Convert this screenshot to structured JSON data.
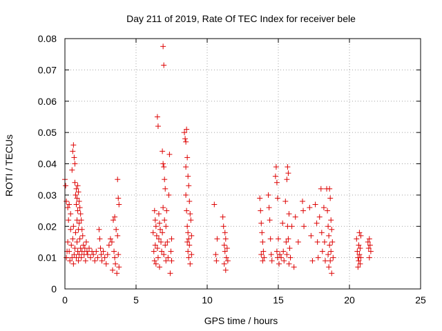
{
  "chart_data": {
    "type": "scatter",
    "title": "Day 211 of 2019, Rate Of TEC Index for receiver bele",
    "xlabel": "GPS time / hours",
    "ylabel": "ROTI / TECUs",
    "xlim": [
      0,
      25
    ],
    "ylim": [
      0,
      0.08
    ],
    "xticks": [
      0,
      5,
      10,
      15,
      20,
      25
    ],
    "xtick_labels": [
      "0",
      "5",
      "10",
      "15",
      "20",
      "25"
    ],
    "yticks": [
      0,
      0.01,
      0.02,
      0.03,
      0.04,
      0.05,
      0.06,
      0.07,
      0.08
    ],
    "ytick_labels": [
      "0",
      "0.01",
      "0.02",
      "0.03",
      "0.04",
      "0.05",
      "0.06",
      "0.07",
      "0.08"
    ],
    "grid": true,
    "marker": "plus",
    "color": "#dd0000",
    "points": [
      [
        0.0,
        0.035
      ],
      [
        0.05,
        0.033
      ],
      [
        0.1,
        0.028
      ],
      [
        0.1,
        0.01
      ],
      [
        0.15,
        0.012
      ],
      [
        0.2,
        0.026
      ],
      [
        0.2,
        0.015
      ],
      [
        0.25,
        0.022
      ],
      [
        0.3,
        0.027
      ],
      [
        0.3,
        0.012
      ],
      [
        0.35,
        0.009
      ],
      [
        0.4,
        0.019
      ],
      [
        0.4,
        0.024
      ],
      [
        0.45,
        0.014
      ],
      [
        0.5,
        0.038
      ],
      [
        0.5,
        0.01
      ],
      [
        0.55,
        0.044
      ],
      [
        0.55,
        0.016
      ],
      [
        0.6,
        0.046
      ],
      [
        0.6,
        0.02
      ],
      [
        0.6,
        0.008
      ],
      [
        0.65,
        0.042
      ],
      [
        0.65,
        0.011
      ],
      [
        0.7,
        0.04
      ],
      [
        0.7,
        0.034
      ],
      [
        0.7,
        0.013
      ],
      [
        0.75,
        0.03
      ],
      [
        0.75,
        0.018
      ],
      [
        0.8,
        0.032
      ],
      [
        0.8,
        0.027
      ],
      [
        0.8,
        0.01
      ],
      [
        0.85,
        0.029
      ],
      [
        0.85,
        0.022
      ],
      [
        0.85,
        0.015
      ],
      [
        0.9,
        0.033
      ],
      [
        0.9,
        0.025
      ],
      [
        0.9,
        0.012
      ],
      [
        0.95,
        0.031
      ],
      [
        0.95,
        0.019
      ],
      [
        0.95,
        0.009
      ],
      [
        1.0,
        0.028
      ],
      [
        1.0,
        0.021
      ],
      [
        1.0,
        0.011
      ],
      [
        1.05,
        0.026
      ],
      [
        1.05,
        0.016
      ],
      [
        1.1,
        0.024
      ],
      [
        1.1,
        0.013
      ],
      [
        1.15,
        0.022
      ],
      [
        1.15,
        0.01
      ],
      [
        1.2,
        0.019
      ],
      [
        1.2,
        0.012
      ],
      [
        1.25,
        0.017
      ],
      [
        1.3,
        0.014
      ],
      [
        1.35,
        0.011
      ],
      [
        1.4,
        0.013
      ],
      [
        1.45,
        0.009
      ],
      [
        1.5,
        0.015
      ],
      [
        1.55,
        0.012
      ],
      [
        1.6,
        0.011
      ],
      [
        1.7,
        0.013
      ],
      [
        1.8,
        0.01
      ],
      [
        1.9,
        0.012
      ],
      [
        2.0,
        0.011
      ],
      [
        2.1,
        0.009
      ],
      [
        2.2,
        0.012
      ],
      [
        2.3,
        0.01
      ],
      [
        2.4,
        0.019
      ],
      [
        2.45,
        0.016
      ],
      [
        2.5,
        0.013
      ],
      [
        2.55,
        0.011
      ],
      [
        2.6,
        0.009
      ],
      [
        2.7,
        0.012
      ],
      [
        2.8,
        0.01
      ],
      [
        2.9,
        0.008
      ],
      [
        3.0,
        0.011
      ],
      [
        3.1,
        0.014
      ],
      [
        3.2,
        0.016
      ],
      [
        3.3,
        0.015
      ],
      [
        3.35,
        0.006
      ],
      [
        3.4,
        0.022
      ],
      [
        3.45,
        0.012
      ],
      [
        3.5,
        0.023
      ],
      [
        3.5,
        0.01
      ],
      [
        3.55,
        0.008
      ],
      [
        3.6,
        0.019
      ],
      [
        3.65,
        0.005
      ],
      [
        3.7,
        0.035
      ],
      [
        3.7,
        0.017
      ],
      [
        3.75,
        0.029
      ],
      [
        3.75,
        0.011
      ],
      [
        3.8,
        0.027
      ],
      [
        3.8,
        0.007
      ],
      [
        6.2,
        0.018
      ],
      [
        6.25,
        0.012
      ],
      [
        6.3,
        0.025
      ],
      [
        6.3,
        0.009
      ],
      [
        6.35,
        0.022
      ],
      [
        6.35,
        0.014
      ],
      [
        6.4,
        0.02
      ],
      [
        6.4,
        0.008
      ],
      [
        6.45,
        0.017
      ],
      [
        6.5,
        0.055
      ],
      [
        6.5,
        0.013
      ],
      [
        6.55,
        0.052
      ],
      [
        6.55,
        0.01
      ],
      [
        6.6,
        0.024
      ],
      [
        6.6,
        0.016
      ],
      [
        6.65,
        0.021
      ],
      [
        6.65,
        0.007
      ],
      [
        6.7,
        0.019
      ],
      [
        6.75,
        0.015
      ],
      [
        6.8,
        0.012
      ],
      [
        6.85,
        0.044
      ],
      [
        6.85,
        0.018
      ],
      [
        6.9,
        0.04
      ],
      [
        6.9,
        0.026
      ],
      [
        6.95,
        0.039
      ],
      [
        6.95,
        0.011
      ],
      [
        6.9,
        0.0775
      ],
      [
        6.95,
        0.0715
      ],
      [
        7.0,
        0.035
      ],
      [
        7.0,
        0.022
      ],
      [
        7.05,
        0.032
      ],
      [
        7.05,
        0.014
      ],
      [
        7.1,
        0.02
      ],
      [
        7.1,
        0.009
      ],
      [
        7.15,
        0.025
      ],
      [
        7.2,
        0.015
      ],
      [
        7.25,
        0.01
      ],
      [
        7.3,
        0.03
      ],
      [
        7.35,
        0.043
      ],
      [
        7.4,
        0.005
      ],
      [
        7.45,
        0.012
      ],
      [
        7.5,
        0.016
      ],
      [
        7.5,
        0.009
      ],
      [
        8.4,
        0.05
      ],
      [
        8.45,
        0.048
      ],
      [
        8.5,
        0.047
      ],
      [
        8.5,
        0.039
      ],
      [
        8.5,
        0.03
      ],
      [
        8.55,
        0.051
      ],
      [
        8.55,
        0.025
      ],
      [
        8.6,
        0.042
      ],
      [
        8.6,
        0.02
      ],
      [
        8.6,
        0.015
      ],
      [
        8.65,
        0.036
      ],
      [
        8.65,
        0.018
      ],
      [
        8.65,
        0.012
      ],
      [
        8.7,
        0.033
      ],
      [
        8.7,
        0.016
      ],
      [
        8.7,
        0.01
      ],
      [
        8.75,
        0.028
      ],
      [
        8.75,
        0.014
      ],
      [
        8.8,
        0.024
      ],
      [
        8.8,
        0.008
      ],
      [
        8.85,
        0.022
      ],
      [
        8.9,
        0.017
      ],
      [
        8.9,
        0.011
      ],
      [
        10.5,
        0.027
      ],
      [
        10.6,
        0.011
      ],
      [
        10.65,
        0.009
      ],
      [
        10.7,
        0.016
      ],
      [
        11.1,
        0.023
      ],
      [
        11.15,
        0.02
      ],
      [
        11.2,
        0.014
      ],
      [
        11.2,
        0.008
      ],
      [
        11.25,
        0.018
      ],
      [
        11.25,
        0.012
      ],
      [
        11.3,
        0.016
      ],
      [
        11.3,
        0.006
      ],
      [
        11.35,
        0.01
      ],
      [
        11.4,
        0.013
      ],
      [
        11.45,
        0.009
      ],
      [
        13.7,
        0.029
      ],
      [
        13.75,
        0.025
      ],
      [
        13.8,
        0.021
      ],
      [
        13.8,
        0.011
      ],
      [
        13.85,
        0.018
      ],
      [
        13.9,
        0.015
      ],
      [
        13.9,
        0.009
      ],
      [
        13.95,
        0.012
      ],
      [
        14.0,
        0.01
      ],
      [
        14.3,
        0.03
      ],
      [
        14.35,
        0.026
      ],
      [
        14.4,
        0.022
      ],
      [
        14.45,
        0.016
      ],
      [
        14.5,
        0.011
      ],
      [
        14.55,
        0.009
      ],
      [
        14.8,
        0.036
      ],
      [
        14.85,
        0.039
      ],
      [
        14.9,
        0.034
      ],
      [
        14.9,
        0.012
      ],
      [
        14.95,
        0.029
      ],
      [
        14.95,
        0.01
      ],
      [
        15.0,
        0.016
      ],
      [
        15.05,
        0.008
      ],
      [
        15.1,
        0.011
      ],
      [
        15.2,
        0.01
      ],
      [
        15.3,
        0.021
      ],
      [
        15.35,
        0.012
      ],
      [
        15.4,
        0.009
      ],
      [
        15.5,
        0.028
      ],
      [
        15.55,
        0.015
      ],
      [
        15.6,
        0.035
      ],
      [
        15.6,
        0.011
      ],
      [
        15.65,
        0.039
      ],
      [
        15.65,
        0.02
      ],
      [
        15.7,
        0.037
      ],
      [
        15.7,
        0.016
      ],
      [
        15.75,
        0.024
      ],
      [
        15.75,
        0.008
      ],
      [
        15.8,
        0.013
      ],
      [
        15.85,
        0.01
      ],
      [
        15.95,
        0.02
      ],
      [
        16.1,
        0.007
      ],
      [
        16.2,
        0.023
      ],
      [
        16.4,
        0.015
      ],
      [
        16.7,
        0.028
      ],
      [
        16.75,
        0.025
      ],
      [
        16.8,
        0.02
      ],
      [
        17.2,
        0.026
      ],
      [
        17.3,
        0.017
      ],
      [
        17.4,
        0.009
      ],
      [
        17.6,
        0.027
      ],
      [
        17.7,
        0.021
      ],
      [
        17.75,
        0.015
      ],
      [
        17.8,
        0.01
      ],
      [
        17.9,
        0.023
      ],
      [
        18.0,
        0.032
      ],
      [
        18.05,
        0.018
      ],
      [
        18.1,
        0.012
      ],
      [
        18.2,
        0.026
      ],
      [
        18.25,
        0.015
      ],
      [
        18.3,
        0.009
      ],
      [
        18.4,
        0.032
      ],
      [
        18.45,
        0.025
      ],
      [
        18.5,
        0.02
      ],
      [
        18.5,
        0.011
      ],
      [
        18.55,
        0.017
      ],
      [
        18.55,
        0.007
      ],
      [
        18.6,
        0.032
      ],
      [
        18.6,
        0.014
      ],
      [
        18.65,
        0.029
      ],
      [
        18.65,
        0.009
      ],
      [
        18.7,
        0.022
      ],
      [
        18.7,
        0.012
      ],
      [
        18.75,
        0.019
      ],
      [
        18.75,
        0.005
      ],
      [
        18.8,
        0.015
      ],
      [
        18.85,
        0.01
      ],
      [
        20.5,
        0.016
      ],
      [
        20.55,
        0.012
      ],
      [
        20.6,
        0.01
      ],
      [
        20.6,
        0.007
      ],
      [
        20.65,
        0.014
      ],
      [
        20.65,
        0.009
      ],
      [
        20.7,
        0.018
      ],
      [
        20.7,
        0.011
      ],
      [
        20.75,
        0.013
      ],
      [
        20.75,
        0.008
      ],
      [
        20.8,
        0.017
      ],
      [
        20.8,
        0.01
      ],
      [
        21.3,
        0.015
      ],
      [
        21.35,
        0.013
      ],
      [
        21.4,
        0.016
      ],
      [
        21.4,
        0.01
      ],
      [
        21.45,
        0.014
      ],
      [
        21.5,
        0.012
      ]
    ]
  }
}
